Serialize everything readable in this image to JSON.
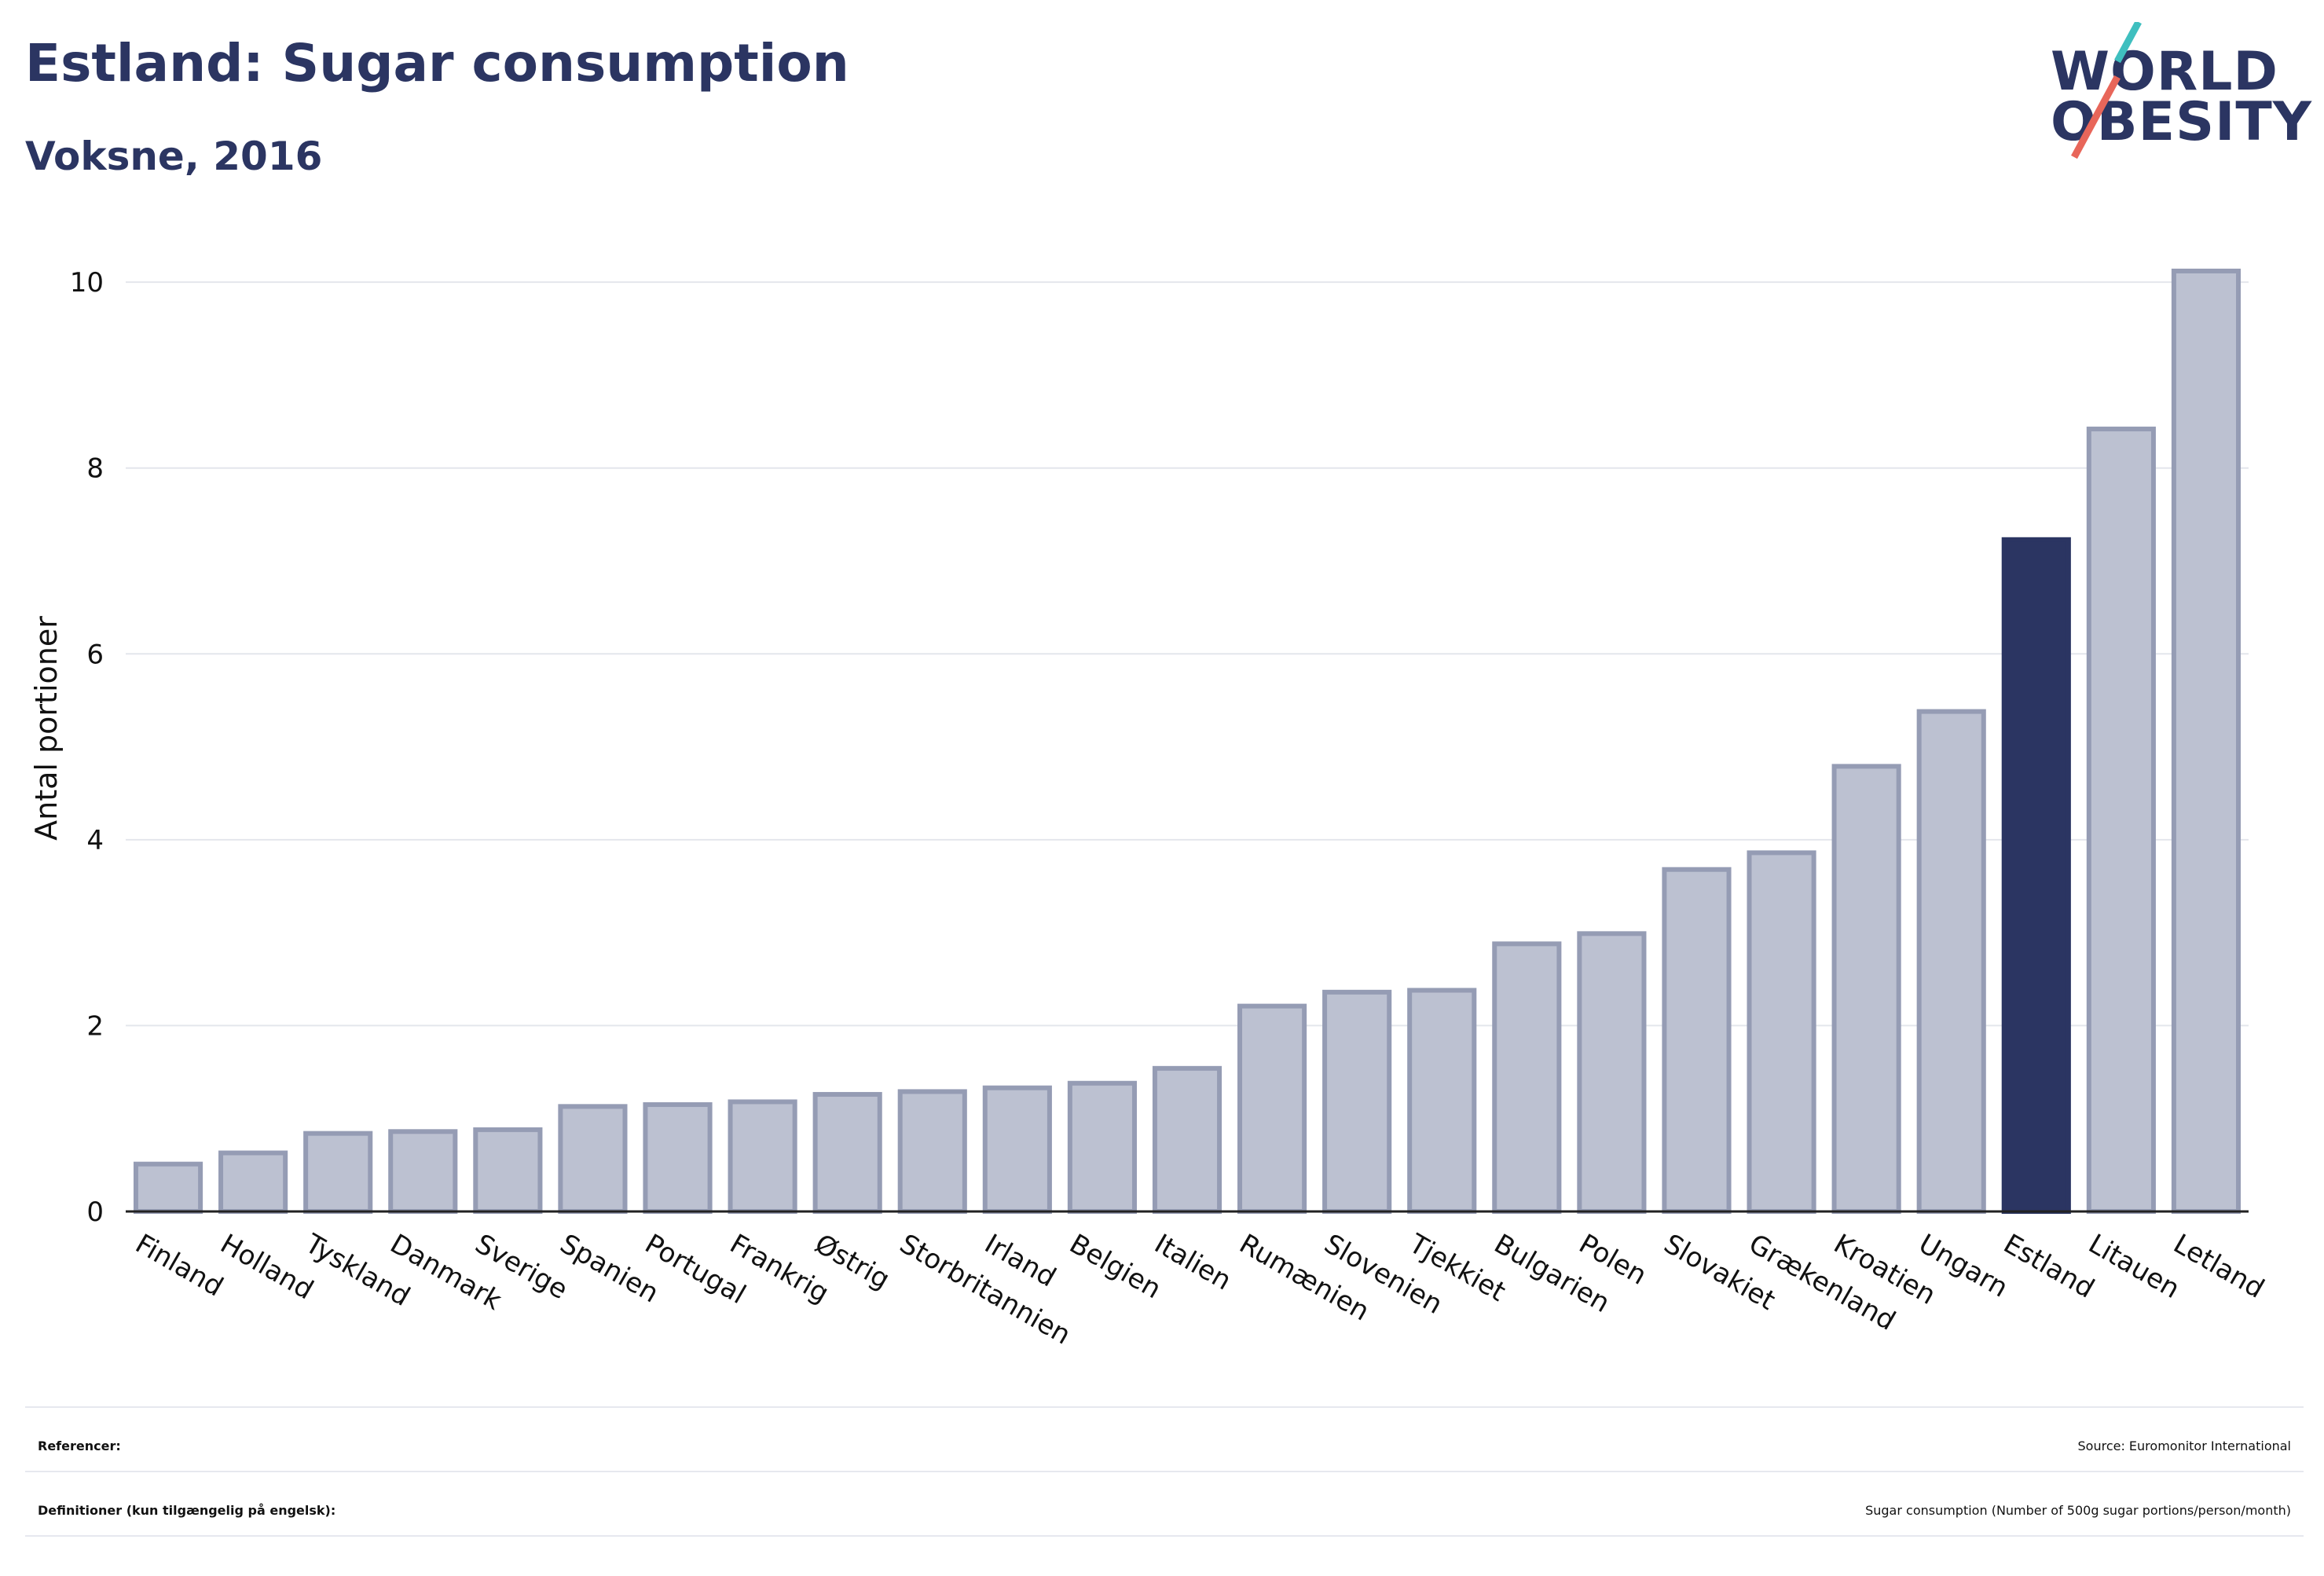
{
  "header": {
    "title": "Estland: Sugar consumption",
    "subtitle": "Voksne, 2016"
  },
  "logo": {
    "line1": "WORLD",
    "line2": "OBESITY",
    "accent_teal": "#3fbfbf",
    "accent_red": "#e8665a"
  },
  "colors": {
    "bar": "#bcc1d1",
    "bar_edge": "#959cb4",
    "highlight": "#2b3562",
    "grid": "#e4e6ec"
  },
  "chart_data": {
    "type": "bar",
    "ylabel": "Antal portioner",
    "ylim": [
      0,
      10.5
    ],
    "yticks": [
      0,
      2,
      4,
      6,
      8,
      10
    ],
    "grid": true,
    "highlight": "Estland",
    "categories": [
      "Finland",
      "Holland",
      "Tyskland",
      "Danmark",
      "Sverige",
      "Spanien",
      "Portugal",
      "Frankrig",
      "Østrig",
      "Storbritannien",
      "Irland",
      "Belgien",
      "Italien",
      "Rumænien",
      "Slovenien",
      "Tjekkiet",
      "Bulgarien",
      "Polen",
      "Slovakiet",
      "Grækenland",
      "Kroatien",
      "Ungarn",
      "Estland",
      "Litauen",
      "Letland"
    ],
    "values": [
      0.51,
      0.63,
      0.84,
      0.86,
      0.88,
      1.13,
      1.15,
      1.18,
      1.26,
      1.29,
      1.33,
      1.38,
      1.54,
      2.21,
      2.36,
      2.38,
      2.88,
      2.99,
      3.68,
      3.86,
      4.79,
      5.38,
      7.23,
      8.42,
      10.12
    ]
  },
  "footer": {
    "references_label": "Referencer:",
    "references_value": "Source: Euromonitor International",
    "definitions_label": "Definitioner (kun tilgængelig på engelsk):",
    "definitions_value": "Sugar consumption (Number of 500g sugar portions/person/month)"
  }
}
